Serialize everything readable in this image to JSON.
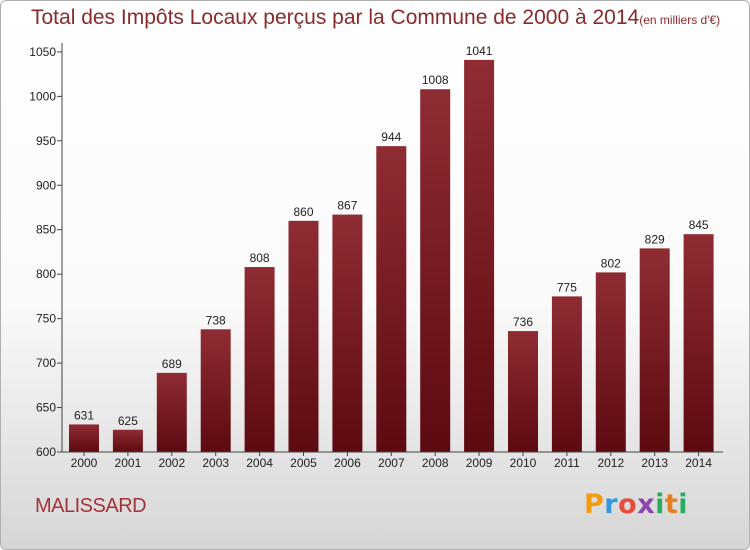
{
  "title": "Total des Impôts Locaux perçus par la Commune de 2000 à 2014",
  "title_unit": "(en milliers d'€)",
  "commune": "MALISSARD",
  "logo": {
    "letters": [
      "P",
      "r",
      "o",
      "x",
      "i",
      "t",
      "i"
    ],
    "colors": [
      "#f39c12",
      "#3498db",
      "#e74c3c",
      "#8e44ad",
      "#27ae60",
      "#e67e22",
      "#27ae60"
    ]
  },
  "chart_data": {
    "type": "bar",
    "categories": [
      "2000",
      "2001",
      "2002",
      "2003",
      "2004",
      "2005",
      "2006",
      "2007",
      "2008",
      "2009",
      "2010",
      "2011",
      "2012",
      "2013",
      "2014"
    ],
    "values": [
      631,
      625,
      689,
      738,
      808,
      860,
      867,
      944,
      1008,
      1041,
      736,
      775,
      802,
      829,
      845
    ],
    "value_labels": [
      "631",
      "625",
      "689",
      "738",
      "808",
      "860",
      "867",
      "944",
      "1008",
      "1041",
      "736",
      "775",
      "802",
      "829",
      "845"
    ],
    "y_ticks": [
      600,
      650,
      700,
      750,
      800,
      850,
      900,
      950,
      1000,
      1050
    ],
    "y_tick_labels": [
      "600",
      "650",
      "700",
      "750",
      "800",
      "850",
      "900",
      "950",
      "1000",
      "1050"
    ],
    "ylim": [
      600,
      1060
    ],
    "xlabel": "",
    "ylabel": "",
    "grid": false,
    "bar_color": "#7a1f24"
  }
}
